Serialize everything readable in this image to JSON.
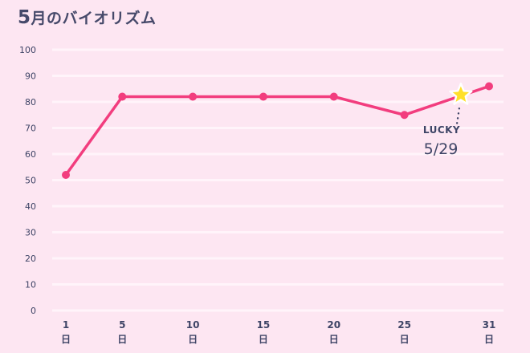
{
  "title": {
    "month": "5",
    "text": "月のバイオリズム"
  },
  "colors": {
    "background": "#fde6f2",
    "gridline": "#fff4fa",
    "line": "#f23d7e",
    "text": "#3e4466",
    "star": "#ffe02a"
  },
  "annotation": {
    "label": "LUCKY",
    "date": "5/29",
    "day": 29,
    "value": 83
  },
  "chart_data": {
    "type": "line",
    "title": "5月のバイオリズム",
    "xlabel": "",
    "ylabel": "",
    "ylim": [
      0,
      100
    ],
    "yticks": [
      0,
      10,
      20,
      30,
      40,
      50,
      60,
      70,
      80,
      90,
      100
    ],
    "grid": true,
    "legend": "none",
    "categories": [
      "1日",
      "5日",
      "10日",
      "15日",
      "20日",
      "25日",
      "31日"
    ],
    "x": [
      1,
      5,
      10,
      15,
      20,
      25,
      31
    ],
    "series": [
      {
        "name": "バイオリズム",
        "values": [
          52,
          82,
          82,
          82,
          82,
          75,
          86
        ]
      }
    ],
    "annotations": [
      {
        "x": 29,
        "y": 83,
        "text": "LUCKY 5/29",
        "marker": "star"
      }
    ]
  },
  "axis": {
    "x_labels": [
      {
        "num": "1",
        "unit": "日"
      },
      {
        "num": "5",
        "unit": "日"
      },
      {
        "num": "10",
        "unit": "日"
      },
      {
        "num": "15",
        "unit": "日"
      },
      {
        "num": "20",
        "unit": "日"
      },
      {
        "num": "25",
        "unit": "日"
      },
      {
        "num": "31",
        "unit": "日"
      }
    ]
  }
}
